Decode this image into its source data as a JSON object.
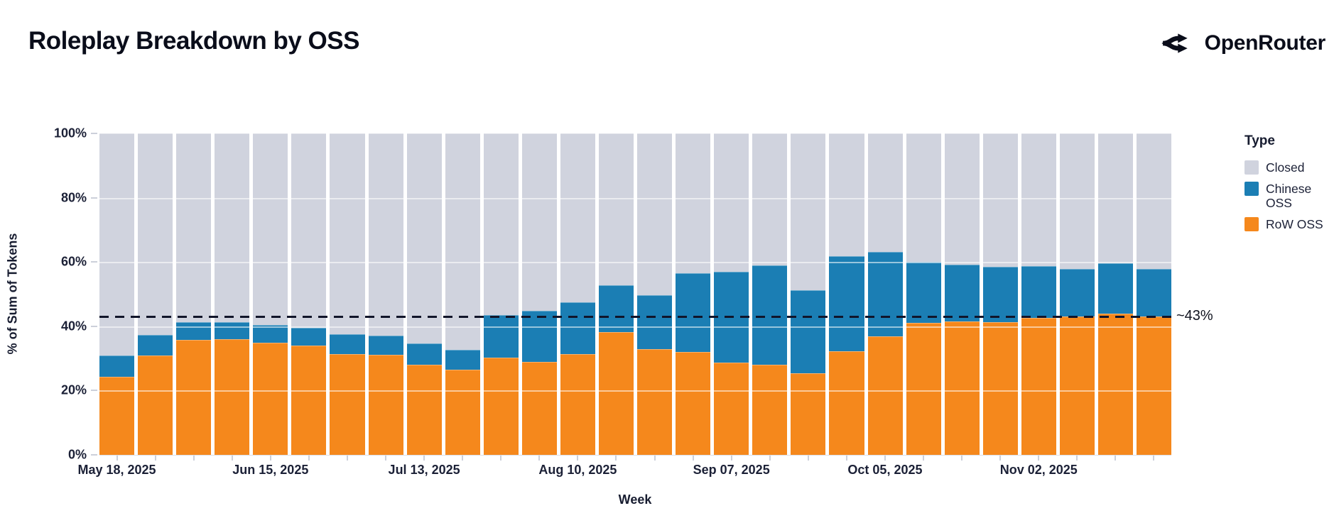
{
  "header": {
    "title": "Roleplay Breakdown by OSS",
    "brand": "OpenRouter"
  },
  "chart_data": {
    "type": "bar",
    "stacked": true,
    "title": "Roleplay Breakdown by OSS",
    "xlabel": "Week",
    "ylabel": "% of Sum of Tokens",
    "ylim": [
      0,
      100
    ],
    "y_tick_labels": [
      "0%",
      "20%",
      "40%",
      "60%",
      "80%",
      "100%"
    ],
    "grid_percents": [
      20,
      40,
      60,
      80
    ],
    "bar_count": 28,
    "x_tick_labels": [
      {
        "bar_index": 0,
        "label": "May 18, 2025"
      },
      {
        "bar_index": 4,
        "label": "Jun 15, 2025"
      },
      {
        "bar_index": 8,
        "label": "Jul 13, 2025"
      },
      {
        "bar_index": 12,
        "label": "Aug 10, 2025"
      },
      {
        "bar_index": 16,
        "label": "Sep 07, 2025"
      },
      {
        "bar_index": 20,
        "label": "Oct 05, 2025"
      },
      {
        "bar_index": 24,
        "label": "Nov 02, 2025"
      }
    ],
    "legend": {
      "title": "Type",
      "position": "right"
    },
    "series": [
      {
        "name": "Closed",
        "color": "#D0D3DE",
        "values": [
          69.4,
          62.8,
          58.8,
          58.8,
          59.8,
          60.7,
          62.6,
          63.1,
          65.6,
          67.6,
          56.6,
          55.4,
          52.6,
          47.3,
          50.5,
          43.5,
          43.1,
          41.1,
          48.8,
          38.2,
          36.8,
          40.0,
          40.9,
          41.5,
          41.4,
          42.2,
          40.5,
          42.3
        ]
      },
      {
        "name": "Chinese OSS",
        "color": "#1B7EB4",
        "values": [
          6.4,
          6.2,
          5.4,
          5.2,
          5.2,
          5.3,
          6.1,
          5.8,
          6.4,
          5.9,
          13.1,
          15.7,
          16.0,
          14.5,
          16.7,
          24.5,
          28.2,
          30.8,
          25.8,
          29.5,
          26.2,
          18.9,
          17.5,
          17.1,
          16.0,
          14.7,
          15.5,
          14.5
        ]
      },
      {
        "name": "RoW OSS",
        "color": "#F5881C",
        "values": [
          24.2,
          31.0,
          35.8,
          36.0,
          35.0,
          34.0,
          31.3,
          31.1,
          28.0,
          26.5,
          30.3,
          28.9,
          31.4,
          38.2,
          32.8,
          32.0,
          28.7,
          28.1,
          25.4,
          32.3,
          37.0,
          41.1,
          41.6,
          41.4,
          42.6,
          43.1,
          44.0,
          43.2
        ]
      }
    ],
    "reference_line": {
      "value": 43,
      "label": "~43%",
      "style": "dashed",
      "color": "#10131F"
    }
  }
}
